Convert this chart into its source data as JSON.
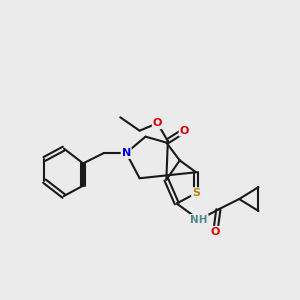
{
  "bg_color": "#ebebeb",
  "bond_color": "#1a1a1a",
  "bond_width": 1.5,
  "atom_colors": {
    "S": "#b8860b",
    "N_ring": "#0000dd",
    "O": "#dd0000",
    "H": "#558888"
  },
  "figsize": [
    3.0,
    3.0
  ],
  "dpi": 100
}
